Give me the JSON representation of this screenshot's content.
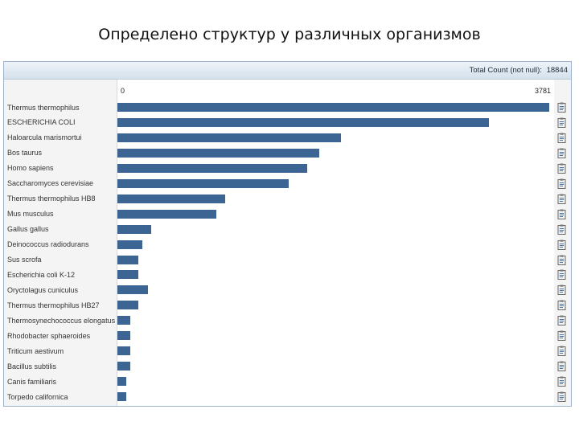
{
  "slide_title": "Определено структур у различных организмов",
  "panel": {
    "total_label": "Total Count (not null):",
    "total_value": "18844",
    "axis_min": "0",
    "axis_max": "3781"
  },
  "chart_data": {
    "type": "bar",
    "orientation": "horizontal",
    "categories": [
      "Thermus thermophilus",
      "ESCHERICHIA COLI",
      "Haloarcula marismortui",
      "Bos taurus",
      "Homo sapiens",
      "Saccharomyces cerevisiae",
      "Thermus thermophilus HB8",
      "Mus musculus",
      "Gallus gallus",
      "Deinococcus radiodurans",
      "Sus scrofa",
      "Escherichia coli K-12",
      "Oryctolagus cuniculus",
      "Thermus thermophilus HB27",
      "Thermosynechococcus elongatus",
      "Rhodobacter sphaeroides",
      "Triticum aestivum",
      "Bacillus subtilis",
      "Canis familiaris",
      "Torpedo californica"
    ],
    "values": [
      3781,
      3250,
      1960,
      1770,
      1660,
      1500,
      940,
      865,
      295,
      215,
      185,
      185,
      265,
      185,
      110,
      110,
      110,
      110,
      75,
      75
    ],
    "xlim": [
      0,
      3781
    ],
    "total_count": 18844,
    "bar_color": "#3c6593",
    "row_icon": "clipboard-icon"
  }
}
